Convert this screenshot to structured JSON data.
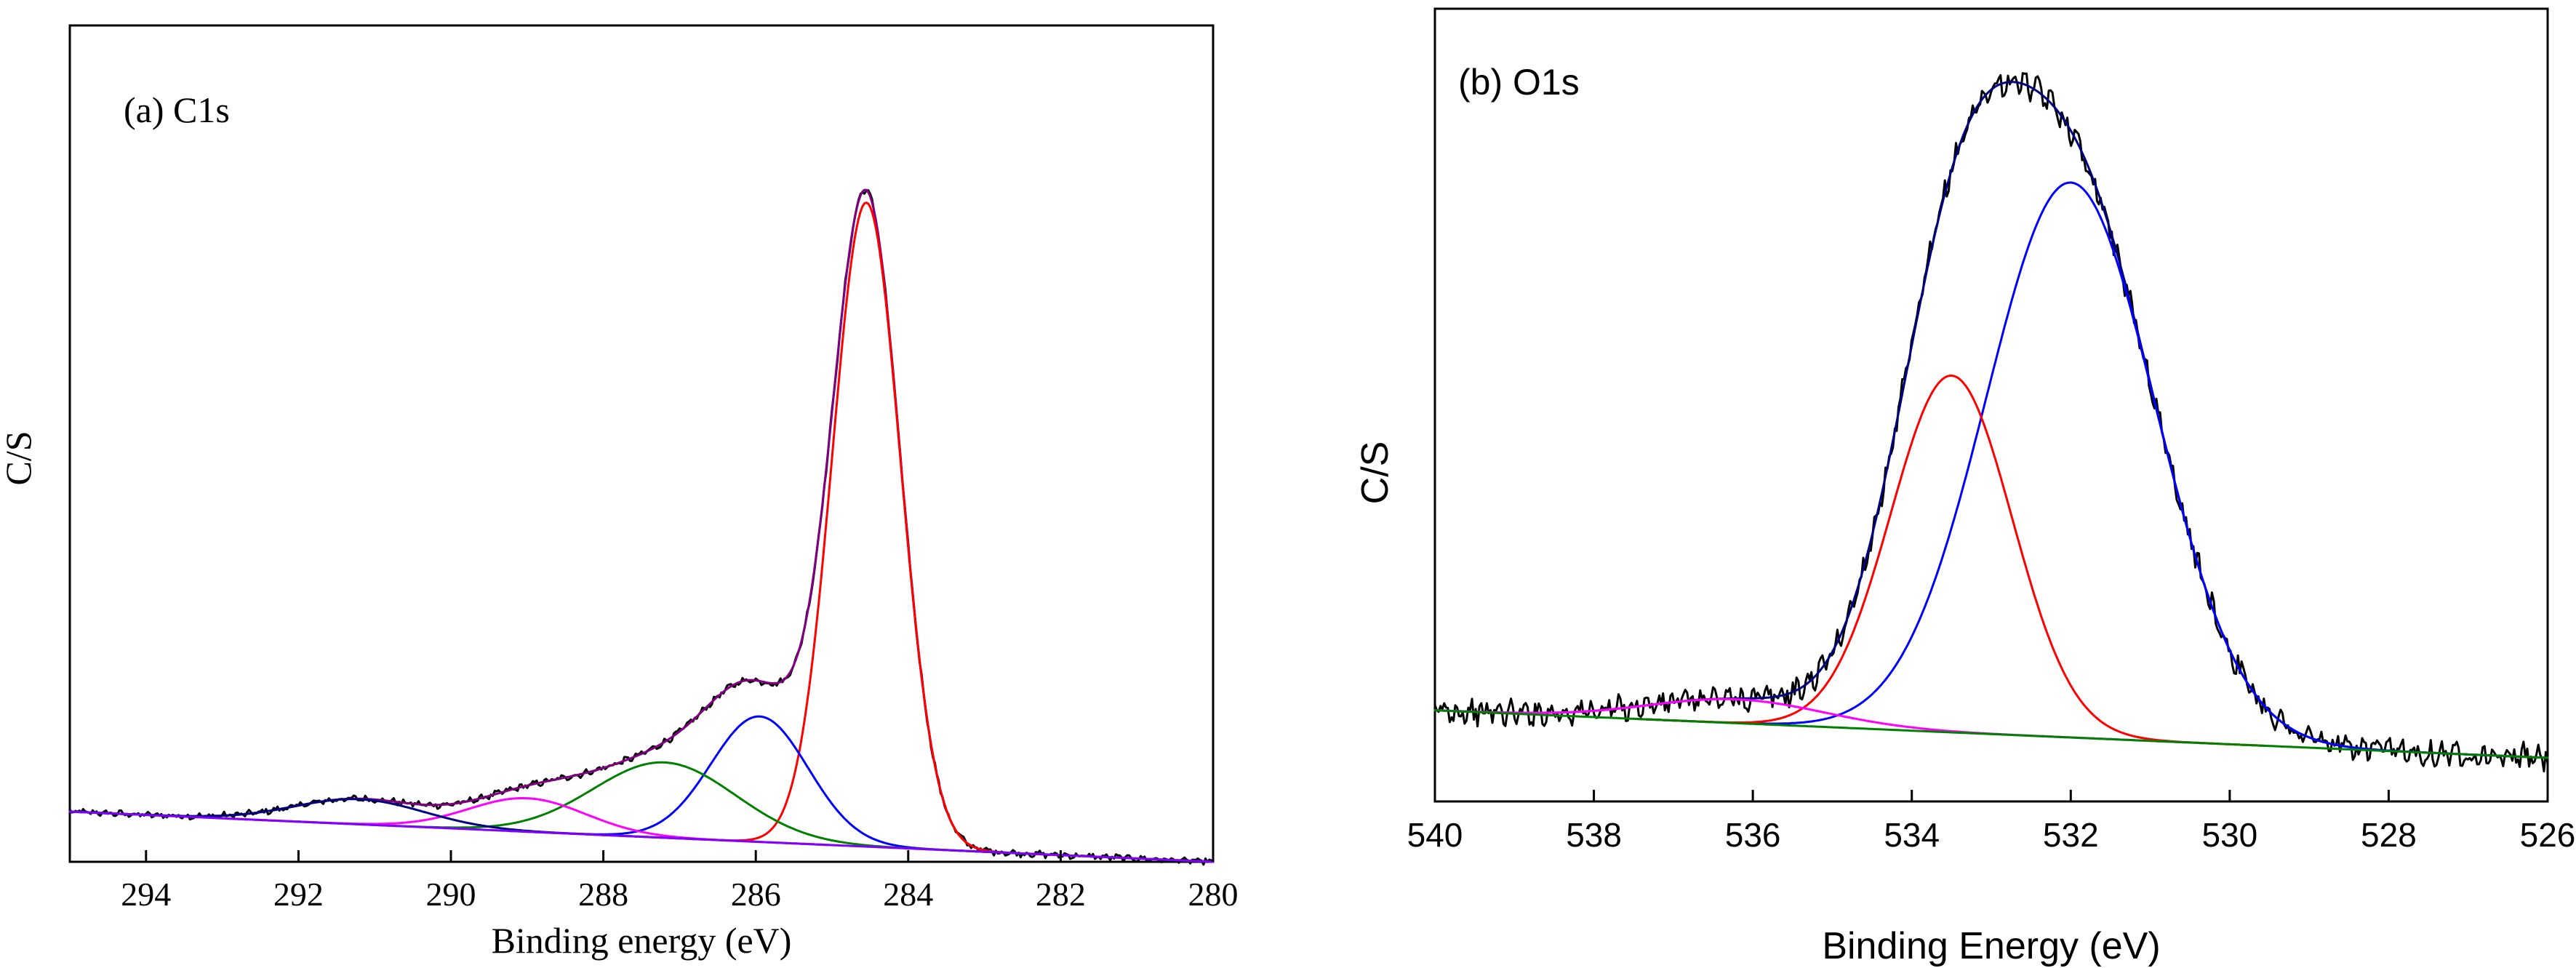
{
  "chart_data": [
    {
      "id": "c1s",
      "type": "line",
      "font": "serif",
      "title": "(a) C1s",
      "xlabel": "Binding energy (eV)",
      "ylabel": "C/S",
      "xlim": [
        295,
        280
      ],
      "ylim": [
        0,
        1.0
      ],
      "x_reversed": true,
      "x_ticks": [
        294,
        292,
        290,
        288,
        286,
        284,
        282,
        280
      ],
      "y_ticks_shown": false,
      "grid": false,
      "legend": "none",
      "background": {
        "type": "linear",
        "y_start": 0.06,
        "y_end": 0.0
      },
      "series": [
        {
          "role": "envelope",
          "color": "#000000",
          "noise": 0.003
        },
        {
          "role": "fit-sum",
          "color": "#800080"
        },
        {
          "role": "component",
          "center": 284.55,
          "height": 0.77,
          "fwhm": 1.05,
          "color": "#ff0000"
        },
        {
          "role": "component",
          "center": 285.95,
          "height": 0.15,
          "fwhm": 1.5,
          "color": "#0000ff"
        },
        {
          "role": "component",
          "center": 287.2,
          "height": 0.09,
          "fwhm": 2.2,
          "color": "#008000"
        },
        {
          "role": "component",
          "center": 289.0,
          "height": 0.04,
          "fwhm": 1.8,
          "color": "#ff00ff"
        },
        {
          "role": "component",
          "center": 291.2,
          "height": 0.03,
          "fwhm": 2.0,
          "color": "#000080"
        },
        {
          "role": "baseline",
          "color": "#8000ff"
        }
      ]
    },
    {
      "id": "o1s",
      "type": "line",
      "font": "sans",
      "title": "(b) O1s",
      "xlabel": "Binding Energy (eV)",
      "ylabel": "C/S",
      "xlim": [
        540,
        526
      ],
      "ylim": [
        0,
        1.0
      ],
      "x_reversed": true,
      "x_ticks": [
        540,
        538,
        536,
        534,
        532,
        530,
        528,
        526
      ],
      "y_ticks_shown": false,
      "grid": false,
      "legend": "none",
      "background": {
        "type": "linear",
        "y_start": 0.115,
        "y_end": 0.055
      },
      "series": [
        {
          "role": "envelope",
          "color": "#000000",
          "noise": 0.012
        },
        {
          "role": "fit-sum",
          "color": "#000080"
        },
        {
          "role": "component",
          "center": 532.0,
          "height": 0.7,
          "fwhm": 2.5,
          "color": "#0000ff"
        },
        {
          "role": "component",
          "center": 533.5,
          "height": 0.45,
          "fwhm": 1.8,
          "color": "#ff0000"
        },
        {
          "role": "component",
          "center": 536.2,
          "height": 0.03,
          "fwhm": 2.6,
          "color": "#ff00ff"
        },
        {
          "role": "baseline",
          "color": "#008000"
        }
      ]
    }
  ]
}
